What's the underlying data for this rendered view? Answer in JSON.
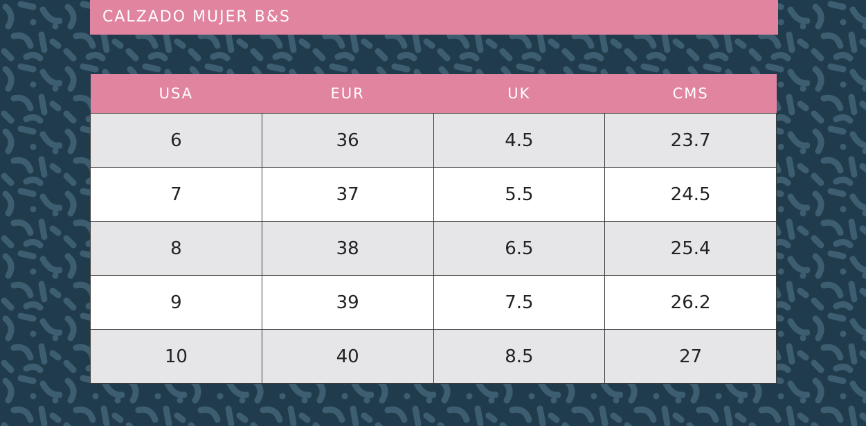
{
  "header": {
    "title": "CALZADO MUJER B&S"
  },
  "table": {
    "columns": [
      "USA",
      "EUR",
      "UK",
      "CMS"
    ],
    "rows": [
      [
        "6",
        "36",
        "4.5",
        "23.7"
      ],
      [
        "7",
        "37",
        "5.5",
        "24.5"
      ],
      [
        "8",
        "38",
        "6.5",
        "25.4"
      ],
      [
        "9",
        "39",
        "7.5",
        "26.2"
      ],
      [
        "10",
        "40",
        "8.5",
        "27"
      ]
    ]
  }
}
